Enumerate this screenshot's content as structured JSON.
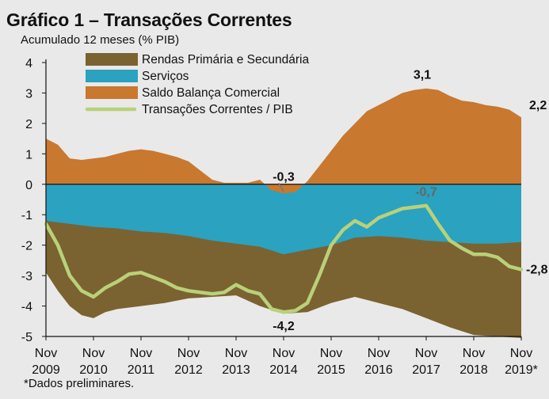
{
  "title": "Gráfico 1 – Transações Correntes",
  "subtitle": "Acumulado 12 meses  (% PIB)",
  "footnote": "*Dados preliminares.",
  "colors": {
    "rendas": "#7a6330",
    "servicos": "#2ba2c0",
    "balanca": "#c8782f",
    "tc_line": "#b9d17a",
    "background": "#e9e9e9"
  },
  "chart_data": {
    "type": "area",
    "ylim": [
      -5,
      4
    ],
    "yticks": [
      "4",
      "3",
      "2",
      "1",
      "0",
      "-1",
      "-2",
      "-3",
      "-4",
      "-5"
    ],
    "x_start": "2009-11",
    "x_end": "2019-11",
    "xticks": [
      {
        "month": "Nov",
        "year": "2009"
      },
      {
        "month": "Nov",
        "year": "2010"
      },
      {
        "month": "Nov",
        "year": "2011"
      },
      {
        "month": "Nov",
        "year": "2012"
      },
      {
        "month": "Nov",
        "year": "2013"
      },
      {
        "month": "Nov",
        "year": "2014"
      },
      {
        "month": "Nov",
        "year": "2015"
      },
      {
        "month": "Nov",
        "year": "2016"
      },
      {
        "month": "Nov",
        "year": "2017"
      },
      {
        "month": "Nov",
        "year": "2018"
      },
      {
        "month": "Nov",
        "year": "2019*"
      }
    ],
    "legend": [
      {
        "label": "Rendas Primária e Secundária",
        "kind": "area",
        "color": "#7a6330"
      },
      {
        "label": "Serviços",
        "kind": "area",
        "color": "#2ba2c0"
      },
      {
        "label": "Saldo Balança Comercial",
        "kind": "area",
        "color": "#c8782f"
      },
      {
        "label": "Transações Correntes / PIB",
        "kind": "line",
        "color": "#b9d17a"
      }
    ],
    "series": [
      {
        "name": "Saldo Balança Comercial",
        "points": [
          [
            "2009-11",
            1.5
          ],
          [
            "2010-02",
            1.3
          ],
          [
            "2010-05",
            0.85
          ],
          [
            "2010-08",
            0.8
          ],
          [
            "2010-11",
            0.85
          ],
          [
            "2011-02",
            0.9
          ],
          [
            "2011-05",
            1.0
          ],
          [
            "2011-08",
            1.1
          ],
          [
            "2011-11",
            1.15
          ],
          [
            "2012-02",
            1.1
          ],
          [
            "2012-05",
            1.0
          ],
          [
            "2012-08",
            0.9
          ],
          [
            "2012-11",
            0.75
          ],
          [
            "2013-02",
            0.45
          ],
          [
            "2013-05",
            0.15
          ],
          [
            "2013-08",
            0.05
          ],
          [
            "2013-11",
            0.05
          ],
          [
            "2014-02",
            0.05
          ],
          [
            "2014-05",
            0.15
          ],
          [
            "2014-08",
            -0.2
          ],
          [
            "2014-11",
            -0.3
          ],
          [
            "2015-02",
            -0.25
          ],
          [
            "2015-05",
            0.1
          ],
          [
            "2015-08",
            0.6
          ],
          [
            "2015-11",
            1.1
          ],
          [
            "2016-02",
            1.6
          ],
          [
            "2016-05",
            2.0
          ],
          [
            "2016-08",
            2.4
          ],
          [
            "2016-11",
            2.6
          ],
          [
            "2017-02",
            2.8
          ],
          [
            "2017-05",
            3.0
          ],
          [
            "2017-08",
            3.1
          ],
          [
            "2017-11",
            3.15
          ],
          [
            "2018-02",
            3.1
          ],
          [
            "2018-05",
            2.9
          ],
          [
            "2018-08",
            2.75
          ],
          [
            "2018-11",
            2.7
          ],
          [
            "2019-02",
            2.6
          ],
          [
            "2019-05",
            2.55
          ],
          [
            "2019-08",
            2.45
          ],
          [
            "2019-11",
            2.2
          ]
        ]
      },
      {
        "name": "Serviços",
        "points": [
          [
            "2009-11",
            -1.2
          ],
          [
            "2010-05",
            -1.3
          ],
          [
            "2010-11",
            -1.4
          ],
          [
            "2011-05",
            -1.45
          ],
          [
            "2011-11",
            -1.55
          ],
          [
            "2012-05",
            -1.6
          ],
          [
            "2012-11",
            -1.7
          ],
          [
            "2013-05",
            -1.85
          ],
          [
            "2013-11",
            -1.95
          ],
          [
            "2014-05",
            -2.05
          ],
          [
            "2014-11",
            -2.3
          ],
          [
            "2015-05",
            -2.15
          ],
          [
            "2015-11",
            -2.0
          ],
          [
            "2016-05",
            -1.75
          ],
          [
            "2016-11",
            -1.7
          ],
          [
            "2017-05",
            -1.75
          ],
          [
            "2017-11",
            -1.85
          ],
          [
            "2018-05",
            -1.9
          ],
          [
            "2018-11",
            -1.95
          ],
          [
            "2019-05",
            -1.95
          ],
          [
            "2019-11",
            -1.9
          ]
        ]
      },
      {
        "name": "Rendas Primária e Secundária",
        "points": [
          [
            "2009-11",
            -2.9
          ],
          [
            "2010-02",
            -3.5
          ],
          [
            "2010-05",
            -4.0
          ],
          [
            "2010-08",
            -4.3
          ],
          [
            "2010-11",
            -4.4
          ],
          [
            "2011-02",
            -4.2
          ],
          [
            "2011-05",
            -4.1
          ],
          [
            "2011-08",
            -4.05
          ],
          [
            "2011-11",
            -4.0
          ],
          [
            "2012-05",
            -3.9
          ],
          [
            "2012-11",
            -3.75
          ],
          [
            "2013-05",
            -3.7
          ],
          [
            "2013-11",
            -3.65
          ],
          [
            "2014-05",
            -4.0
          ],
          [
            "2014-11",
            -4.25
          ],
          [
            "2015-05",
            -4.2
          ],
          [
            "2015-11",
            -3.9
          ],
          [
            "2016-05",
            -3.7
          ],
          [
            "2016-11",
            -3.9
          ],
          [
            "2017-05",
            -4.1
          ],
          [
            "2017-11",
            -4.4
          ],
          [
            "2018-05",
            -4.7
          ],
          [
            "2018-11",
            -4.95
          ],
          [
            "2019-05",
            -5.0
          ],
          [
            "2019-11",
            -5.05
          ]
        ]
      },
      {
        "name": "Transações Correntes / PIB",
        "points": [
          [
            "2009-11",
            -1.3
          ],
          [
            "2010-02",
            -2.0
          ],
          [
            "2010-05",
            -3.0
          ],
          [
            "2010-08",
            -3.5
          ],
          [
            "2010-11",
            -3.7
          ],
          [
            "2011-02",
            -3.4
          ],
          [
            "2011-05",
            -3.2
          ],
          [
            "2011-08",
            -2.95
          ],
          [
            "2011-11",
            -2.9
          ],
          [
            "2012-02",
            -3.05
          ],
          [
            "2012-05",
            -3.2
          ],
          [
            "2012-08",
            -3.4
          ],
          [
            "2012-11",
            -3.5
          ],
          [
            "2013-02",
            -3.55
          ],
          [
            "2013-05",
            -3.6
          ],
          [
            "2013-08",
            -3.55
          ],
          [
            "2013-11",
            -3.3
          ],
          [
            "2014-02",
            -3.5
          ],
          [
            "2014-05",
            -3.6
          ],
          [
            "2014-08",
            -4.1
          ],
          [
            "2014-11",
            -4.2
          ],
          [
            "2015-02",
            -4.15
          ],
          [
            "2015-05",
            -3.9
          ],
          [
            "2015-08",
            -3.0
          ],
          [
            "2015-11",
            -2.0
          ],
          [
            "2016-02",
            -1.5
          ],
          [
            "2016-05",
            -1.2
          ],
          [
            "2016-08",
            -1.4
          ],
          [
            "2016-11",
            -1.1
          ],
          [
            "2017-02",
            -0.95
          ],
          [
            "2017-05",
            -0.8
          ],
          [
            "2017-08",
            -0.75
          ],
          [
            "2017-11",
            -0.7
          ],
          [
            "2018-02",
            -1.3
          ],
          [
            "2018-05",
            -1.85
          ],
          [
            "2018-08",
            -2.1
          ],
          [
            "2018-11",
            -2.3
          ],
          [
            "2019-02",
            -2.3
          ],
          [
            "2019-05",
            -2.4
          ],
          [
            "2019-08",
            -2.7
          ],
          [
            "2019-11",
            -2.8
          ]
        ]
      }
    ],
    "annotations": [
      {
        "text": "3,1",
        "date": "2017-10",
        "value": 3.1,
        "style": "bold"
      },
      {
        "text": "2,2",
        "date": "2019-11",
        "value": 2.2,
        "style": "bold"
      },
      {
        "text": "-0,3",
        "date": "2014-11",
        "value": -0.3,
        "style": "bold"
      },
      {
        "text": "-0,7",
        "date": "2017-11",
        "value": -0.7,
        "style": "grey"
      },
      {
        "text": "-2,8",
        "date": "2019-11",
        "value": -2.8,
        "style": "bold"
      },
      {
        "text": "-4,2",
        "date": "2014-11",
        "value": -4.2,
        "style": "bold"
      }
    ]
  }
}
